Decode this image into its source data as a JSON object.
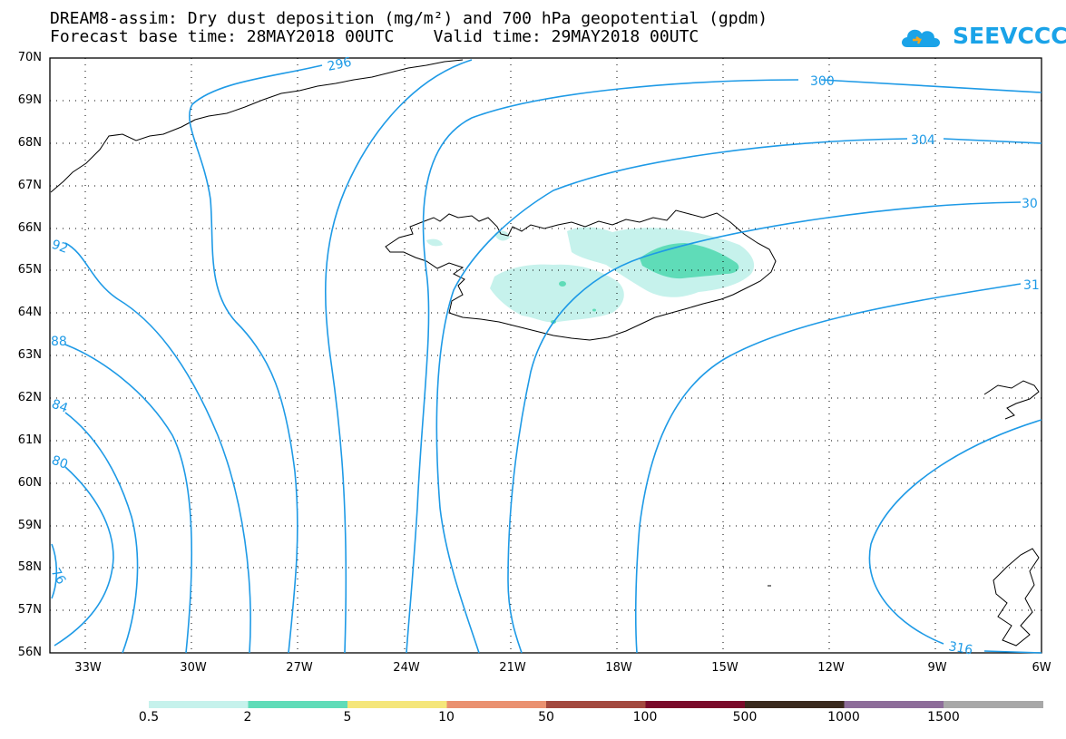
{
  "title": {
    "line1": "DREAM8-assim: Dry dust deposition (mg/m²) and 700 hPa geopotential (gpdm)",
    "line2": "Forecast base time: 28MAY2018 00UTC    Valid time: 29MAY2018 00UTC"
  },
  "logo": {
    "text": "SEEVCCC",
    "icon": "cloud-icon",
    "color": "#1aa3e8"
  },
  "map": {
    "lat_labels": [
      "70N",
      "69N",
      "68N",
      "67N",
      "66N",
      "65N",
      "64N",
      "63N",
      "62N",
      "61N",
      "60N",
      "59N",
      "58N",
      "57N",
      "56N"
    ],
    "lon_labels": [
      "33W",
      "30W",
      "27W",
      "24W",
      "21W",
      "18W",
      "15W",
      "12W",
      "9W",
      "6W"
    ],
    "contour_color": "#1e9ae6",
    "contour_labels": [
      "296",
      "300",
      "304",
      "30",
      "31",
      "92",
      "88",
      "84",
      "80",
      "76",
      "316"
    ],
    "dust_colors": {
      "low": "#c6f2ec",
      "mid": "#5fdcb8"
    }
  },
  "legend": {
    "colors": [
      "#c6f2ec",
      "#5fdcb8",
      "#f5e67a",
      "#ea9170",
      "#a3493f",
      "#7a0a2a",
      "#3a2a1e",
      "#8d6d9a",
      "#a8a8a8"
    ],
    "labels": [
      "0.5",
      "2",
      "5",
      "10",
      "50",
      "100",
      "500",
      "1000",
      "1500"
    ]
  }
}
